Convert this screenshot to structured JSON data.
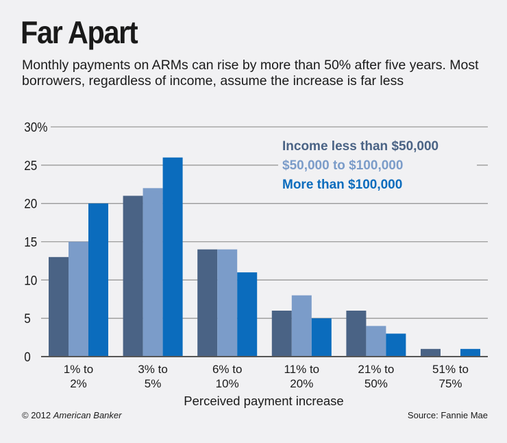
{
  "header": {
    "title": "Far Apart",
    "subtitle": "Monthly payments on ARMs can rise by more than 50% after five years. Most borrowers, regardless of income, assume the increase is far less"
  },
  "footer": {
    "copyright": "© 2012",
    "publisher": "American Banker",
    "source": "Source: Fannie Mae"
  },
  "chart_data": {
    "type": "bar",
    "title": "Far Apart",
    "xlabel": "Perceived payment increase",
    "ylabel": "",
    "ylim": [
      0,
      30
    ],
    "yticks": [
      "0",
      "5",
      "10",
      "15",
      "20",
      "25",
      "30%"
    ],
    "grid": true,
    "legend_position": "top-right",
    "categories": [
      [
        "1% to",
        "2%"
      ],
      [
        "3% to",
        "5%"
      ],
      [
        "6% to",
        "10%"
      ],
      [
        "11% to",
        "20%"
      ],
      [
        "21% to",
        "50%"
      ],
      [
        "51% to",
        "75%"
      ]
    ],
    "series": [
      {
        "name": "Income less than $50,000",
        "color": "#4a6385",
        "values": [
          13,
          21,
          14,
          6,
          6,
          1
        ]
      },
      {
        "name": "$50,000 to $100,000",
        "color": "#7b9cc9",
        "values": [
          15,
          22,
          14,
          8,
          4,
          0
        ]
      },
      {
        "name": "More than $100,000",
        "color": "#0b6cbd",
        "values": [
          20,
          26,
          11,
          5,
          3,
          1
        ]
      }
    ]
  }
}
